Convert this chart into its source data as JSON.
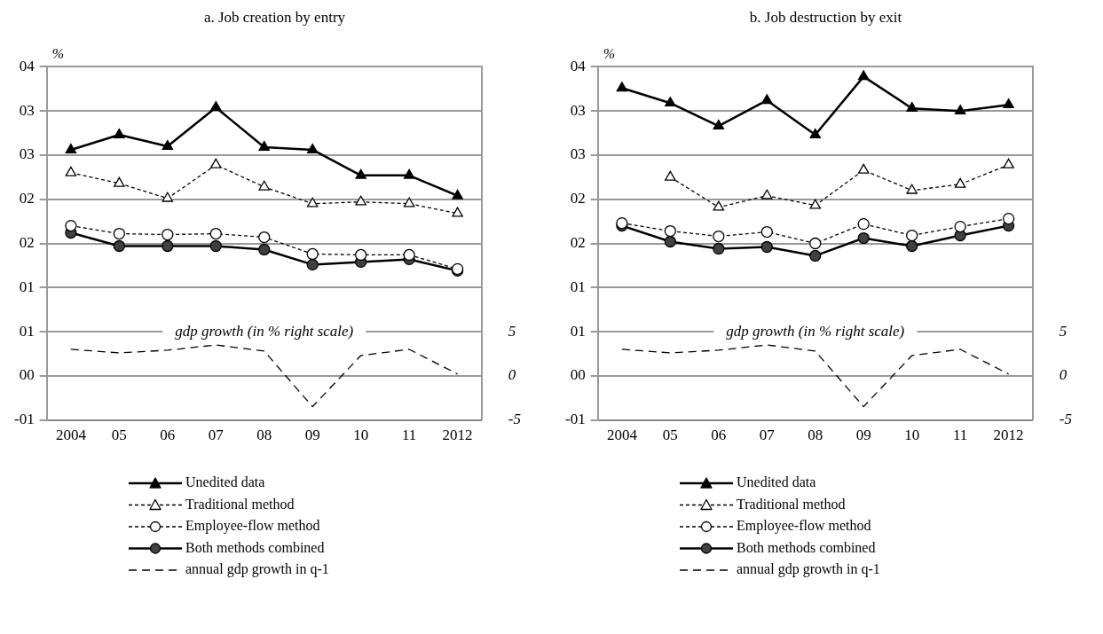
{
  "chart_data": [
    {
      "type": "line",
      "title": "a. Job creation by entry",
      "ylabel": "%",
      "categories": [
        "2004",
        "05",
        "06",
        "07",
        "08",
        "09",
        "10",
        "11",
        "2012"
      ],
      "series": [
        {
          "name": "Unedited data",
          "color": "#000000",
          "marker": "triangle",
          "line_style": "solid",
          "values": [
            2.56,
            2.73,
            2.6,
            3.04,
            2.59,
            2.56,
            2.27,
            2.27,
            2.04
          ]
        },
        {
          "name": "Traditional method",
          "color": "#000000",
          "marker": "triangle",
          "line_style": "dashed",
          "values": [
            2.3,
            2.18,
            2.01,
            2.39,
            2.14,
            1.95,
            1.97,
            1.95,
            1.84
          ]
        },
        {
          "name": "Employee-flow method",
          "color": "#000000",
          "marker": "circle",
          "line_style": "dashed",
          "values": [
            1.7,
            1.61,
            1.6,
            1.61,
            1.57,
            1.38,
            1.37,
            1.37,
            1.21
          ]
        },
        {
          "name": "Both methods combined",
          "color": "#404040",
          "marker": "circle",
          "line_style": "solid",
          "values": [
            1.62,
            1.47,
            1.47,
            1.47,
            1.43,
            1.26,
            1.29,
            1.32,
            1.19
          ]
        },
        {
          "name": "annual gdp growth in q-1",
          "color": "#000000",
          "marker": "none",
          "line_style": "dashed",
          "axis": "y2",
          "values": [
            3.0,
            2.6,
            2.9,
            3.5,
            2.8,
            -3.5,
            2.3,
            3.0,
            0.2
          ]
        }
      ],
      "ylim": [
        -0.5,
        3.5
      ],
      "yticks": [
        {
          "value": 3.5,
          "label": "04"
        },
        {
          "value": 3,
          "label": "03"
        },
        {
          "value": 2.5,
          "label": "03"
        },
        {
          "value": 2,
          "label": "02"
        },
        {
          "value": 1.5,
          "label": "02"
        },
        {
          "value": 1,
          "label": "01"
        },
        {
          "value": 0.5,
          "label": "01"
        },
        {
          "value": 0,
          "label": "00"
        },
        {
          "value": -0.5,
          "label": "-01"
        }
      ],
      "y2lim": [
        -5,
        35
      ],
      "y2ticks": [
        5,
        0,
        -5
      ],
      "annotations": [
        "gdp growth (in % right scale)"
      ],
      "grid": "y",
      "legend": "bottom"
    },
    {
      "type": "line",
      "title": "b. Job destruction by exit",
      "ylabel": "%",
      "categories": [
        "2004",
        "05",
        "06",
        "07",
        "08",
        "09",
        "10",
        "11",
        "2012"
      ],
      "series": [
        {
          "name": "Unedited data",
          "color": "#000000",
          "marker": "triangle",
          "line_style": "solid",
          "values": [
            3.26,
            3.09,
            2.83,
            3.12,
            2.73,
            3.39,
            3.03,
            3.0,
            3.07
          ]
        },
        {
          "name": "Traditional method",
          "color": "#000000",
          "marker": "triangle",
          "line_style": "dashed",
          "values": [
            null,
            2.25,
            1.91,
            2.04,
            1.93,
            2.33,
            2.1,
            2.17,
            2.39
          ]
        },
        {
          "name": "Employee-flow method",
          "color": "#000000",
          "marker": "circle",
          "line_style": "dashed",
          "values": [
            1.73,
            1.64,
            1.58,
            1.63,
            1.5,
            1.72,
            1.59,
            1.69,
            1.78
          ]
        },
        {
          "name": "Both methods combined",
          "color": "#404040",
          "marker": "circle",
          "line_style": "solid",
          "values": [
            1.7,
            1.52,
            1.44,
            1.46,
            1.36,
            1.56,
            1.47,
            1.59,
            1.7
          ]
        },
        {
          "name": "annual gdp growth in q-1",
          "color": "#000000",
          "marker": "none",
          "line_style": "dashed",
          "axis": "y2",
          "values": [
            3.0,
            2.6,
            2.9,
            3.5,
            2.8,
            -3.5,
            2.3,
            3.0,
            0.2
          ]
        }
      ],
      "ylim": [
        -0.5,
        3.5
      ],
      "yticks": [
        {
          "value": 3.5,
          "label": "04"
        },
        {
          "value": 3,
          "label": "03"
        },
        {
          "value": 2.5,
          "label": "03"
        },
        {
          "value": 2,
          "label": "02"
        },
        {
          "value": 1.5,
          "label": "02"
        },
        {
          "value": 1,
          "label": "01"
        },
        {
          "value": 0.5,
          "label": "01"
        },
        {
          "value": 0,
          "label": "00"
        },
        {
          "value": -0.5,
          "label": "-01"
        }
      ],
      "y2lim": [
        -5,
        35
      ],
      "y2ticks": [
        5,
        0,
        -5
      ],
      "annotations": [
        "gdp growth (in % right scale)"
      ],
      "grid": "y",
      "legend": "bottom"
    }
  ]
}
